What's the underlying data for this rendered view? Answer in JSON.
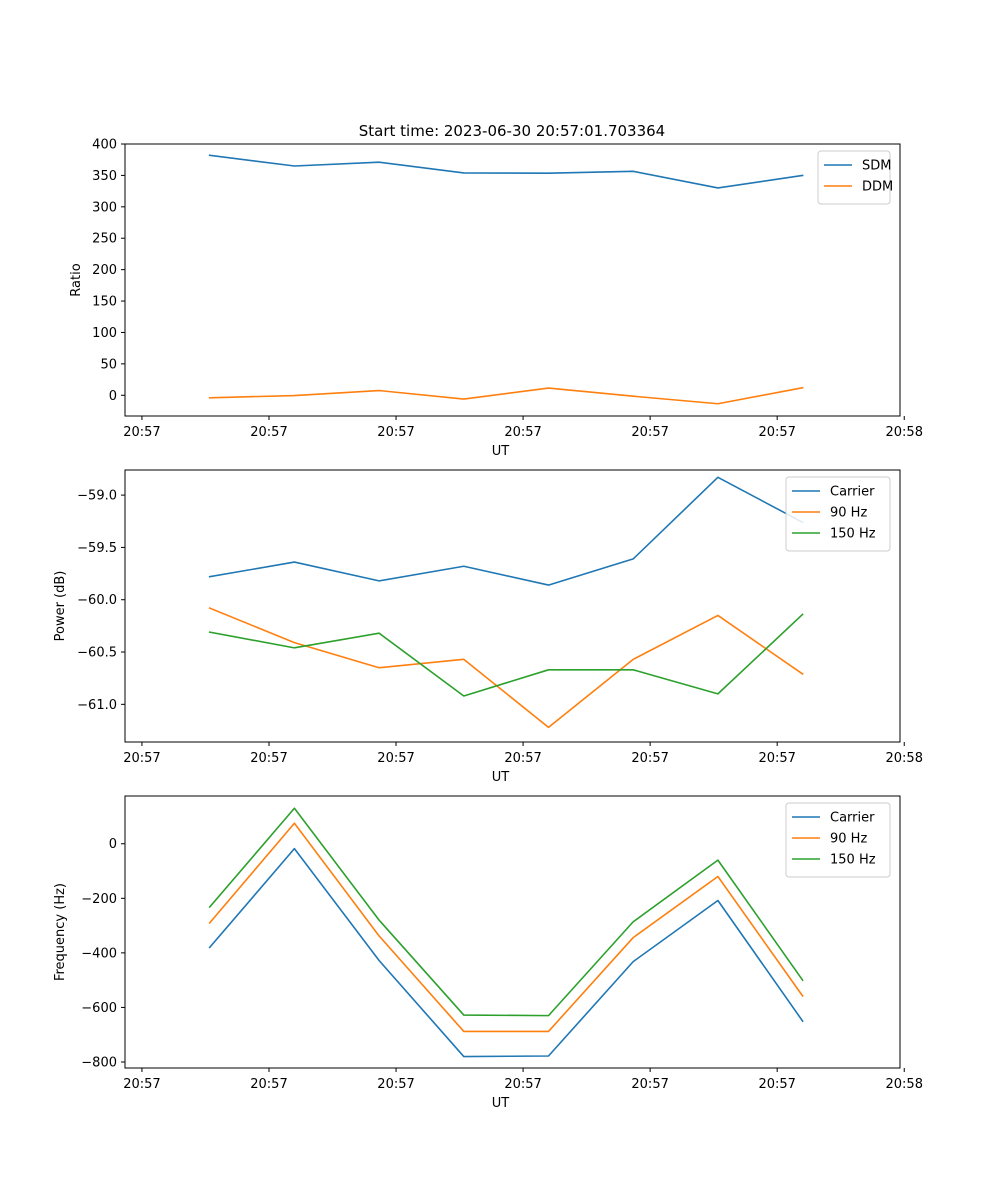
{
  "figure": {
    "title": "Start time: 2023-06-30 20:57:01.703364"
  },
  "chart_data": [
    {
      "type": "line",
      "title": "Start time: 2023-06-30 20:57:01.703364",
      "xlabel": "UT",
      "ylabel": "Ratio",
      "x": [
        1,
        2,
        3,
        4,
        5,
        6,
        7,
        8
      ],
      "xlim": [
        0,
        9.15
      ],
      "xticks": [
        0.2,
        1.7,
        3.2,
        4.7,
        6.2,
        7.7,
        9.2
      ],
      "xtick_labels": [
        "20:57",
        "20:57",
        "20:57",
        "20:57",
        "20:57",
        "20:57",
        "20:58"
      ],
      "ylim": [
        -33,
        400
      ],
      "yticks": [
        0,
        50,
        100,
        150,
        200,
        250,
        300,
        350,
        400
      ],
      "ytick_labels": [
        "0",
        "50",
        "100",
        "150",
        "200",
        "250",
        "300",
        "350",
        "400"
      ],
      "legend": "top-right",
      "series": [
        {
          "name": "SDM",
          "color": "#1f77b4",
          "values": [
            382,
            365,
            371,
            354,
            353.5,
            356.5,
            330,
            350
          ]
        },
        {
          "name": "DDM",
          "color": "#ff7f0e",
          "values": [
            -4,
            -0.5,
            7.5,
            -6,
            11.5,
            -1.5,
            -13.5,
            12
          ]
        }
      ]
    },
    {
      "type": "line",
      "title": "",
      "xlabel": "UT",
      "ylabel": "Power (dB)",
      "x": [
        1,
        2,
        3,
        4,
        5,
        6,
        7,
        8
      ],
      "xlim": [
        0,
        9.15
      ],
      "xticks": [
        0.2,
        1.7,
        3.2,
        4.7,
        6.2,
        7.7,
        9.2
      ],
      "xtick_labels": [
        "20:57",
        "20:57",
        "20:57",
        "20:57",
        "20:57",
        "20:57",
        "20:58"
      ],
      "ylim": [
        -61.36,
        -58.76
      ],
      "yticks": [
        -61.0,
        -60.5,
        -60.0,
        -59.5,
        -59.0
      ],
      "ytick_labels": [
        "−61.0",
        "−60.5",
        "−60.0",
        "−59.5",
        "−59.0"
      ],
      "legend": "top-right",
      "series": [
        {
          "name": "Carrier",
          "color": "#1f77b4",
          "values": [
            -59.78,
            -59.64,
            -59.82,
            -59.68,
            -59.86,
            -59.61,
            -58.83,
            -59.26
          ]
        },
        {
          "name": "90 Hz",
          "color": "#ff7f0e",
          "values": [
            -60.08,
            -60.41,
            -60.65,
            -60.57,
            -61.22,
            -60.57,
            -60.15,
            -60.71
          ]
        },
        {
          "name": "150 Hz",
          "color": "#2ca02c",
          "values": [
            -60.31,
            -60.46,
            -60.32,
            -60.92,
            -60.67,
            -60.67,
            -60.9,
            -60.14
          ]
        }
      ]
    },
    {
      "type": "line",
      "title": "",
      "xlabel": "UT",
      "ylabel": "Frequency (Hz)",
      "x": [
        1,
        2,
        3,
        4,
        5,
        6,
        7,
        8
      ],
      "xlim": [
        0,
        9.15
      ],
      "xticks": [
        0.2,
        1.7,
        3.2,
        4.7,
        6.2,
        7.7,
        9.2
      ],
      "xtick_labels": [
        "20:57",
        "20:57",
        "20:57",
        "20:57",
        "20:57",
        "20:57",
        "20:58"
      ],
      "ylim": [
        -822,
        175
      ],
      "yticks": [
        -800,
        -600,
        -400,
        -200,
        0
      ],
      "ytick_labels": [
        "−800",
        "−600",
        "−400",
        "−200",
        "0"
      ],
      "legend": "top-right",
      "series": [
        {
          "name": "Carrier",
          "color": "#1f77b4",
          "values": [
            -380,
            -18,
            -428,
            -780,
            -778,
            -432,
            -208,
            -650
          ]
        },
        {
          "name": "90 Hz",
          "color": "#ff7f0e",
          "values": [
            -290,
            75,
            -338,
            -688,
            -688,
            -344,
            -120,
            -558
          ]
        },
        {
          "name": "150 Hz",
          "color": "#2ca02c",
          "values": [
            -232,
            130,
            -280,
            -628,
            -630,
            -286,
            -60,
            -500
          ]
        }
      ]
    }
  ]
}
